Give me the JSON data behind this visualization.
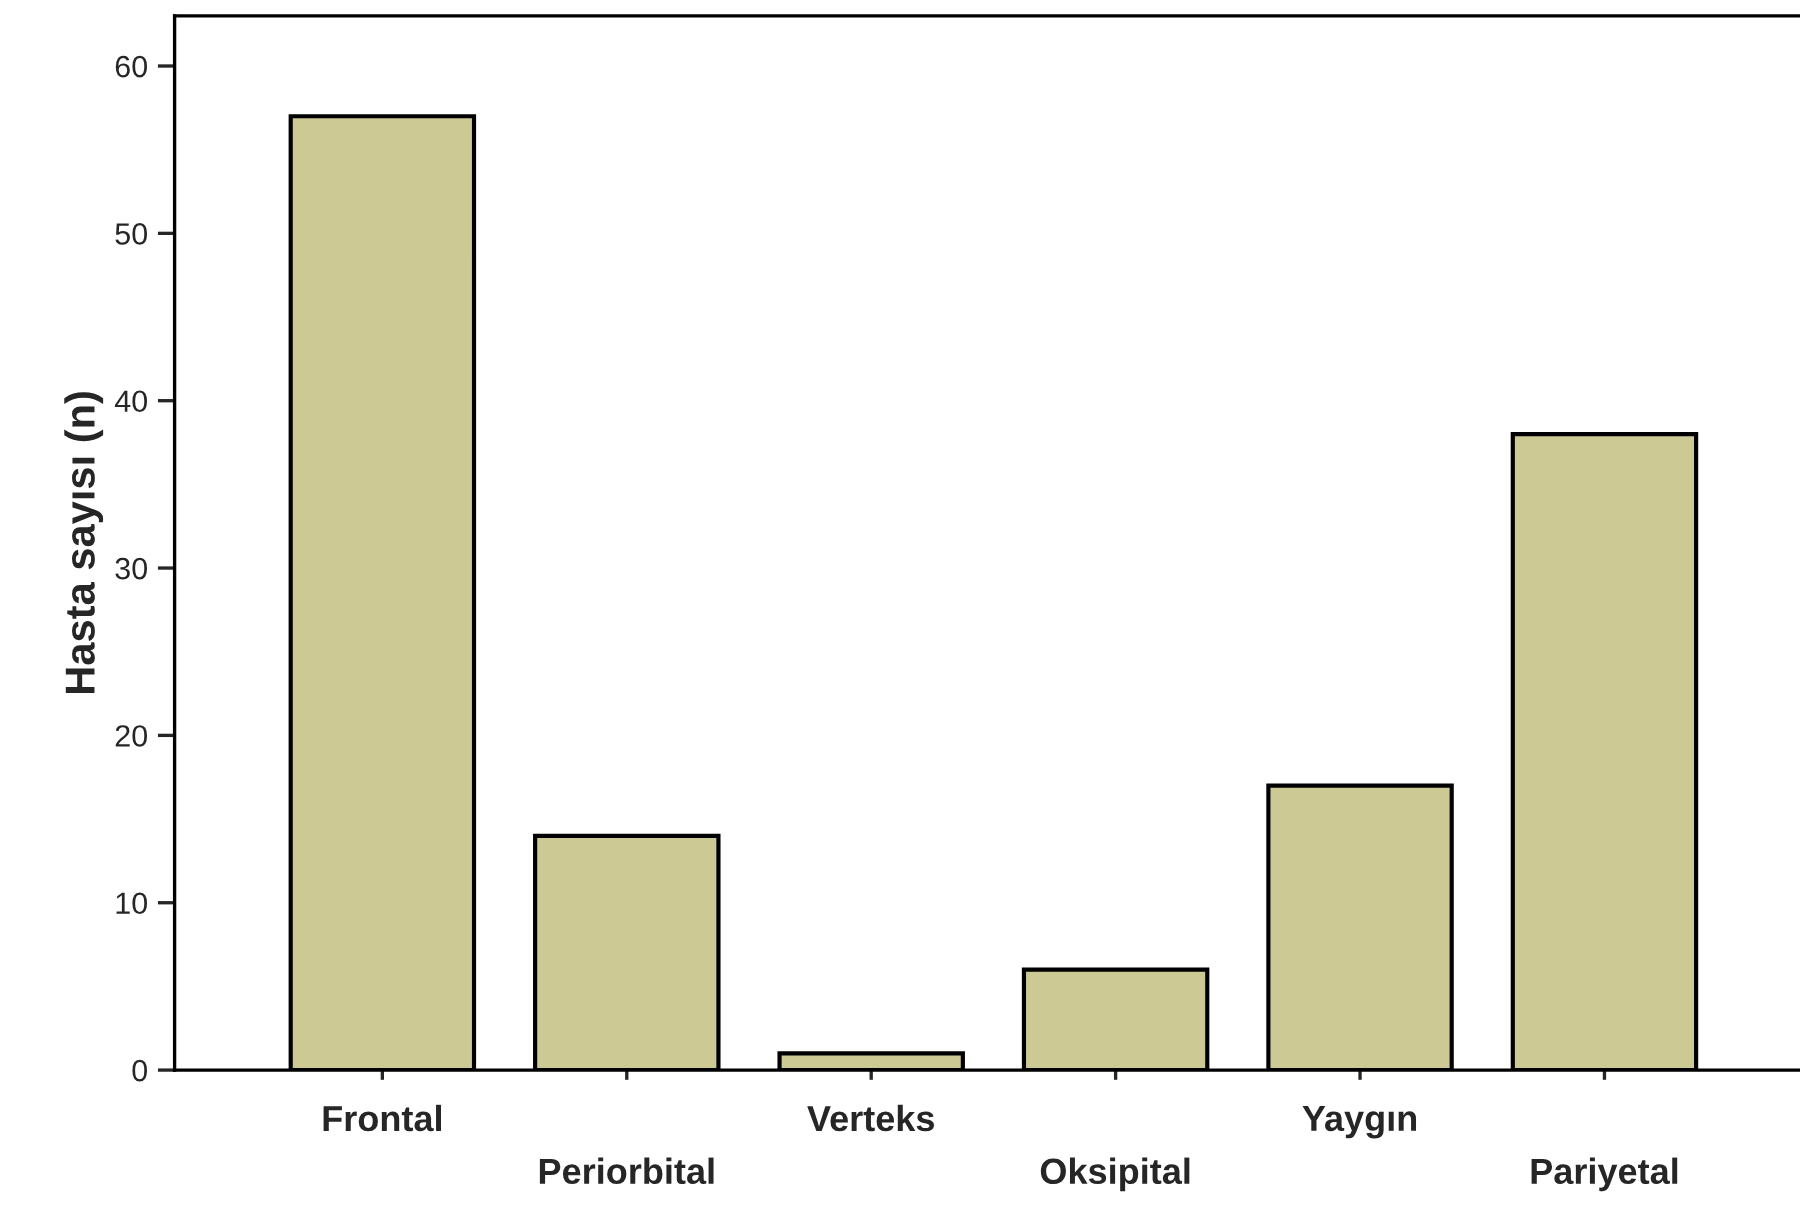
{
  "chart_data": {
    "type": "bar",
    "ylabel": "Hasta sayısı (n)",
    "categories": [
      "Frontal",
      "Periorbital",
      "Verteks",
      "Oksipital",
      "Yaygın",
      "Pariyetal"
    ],
    "values": [
      57,
      14,
      1,
      6,
      17,
      38
    ],
    "color": "#cdc995",
    "ylim": [
      0,
      63
    ],
    "yticks": [
      0,
      10,
      20,
      30,
      40,
      50,
      60
    ],
    "grid": false,
    "legend": false
  }
}
